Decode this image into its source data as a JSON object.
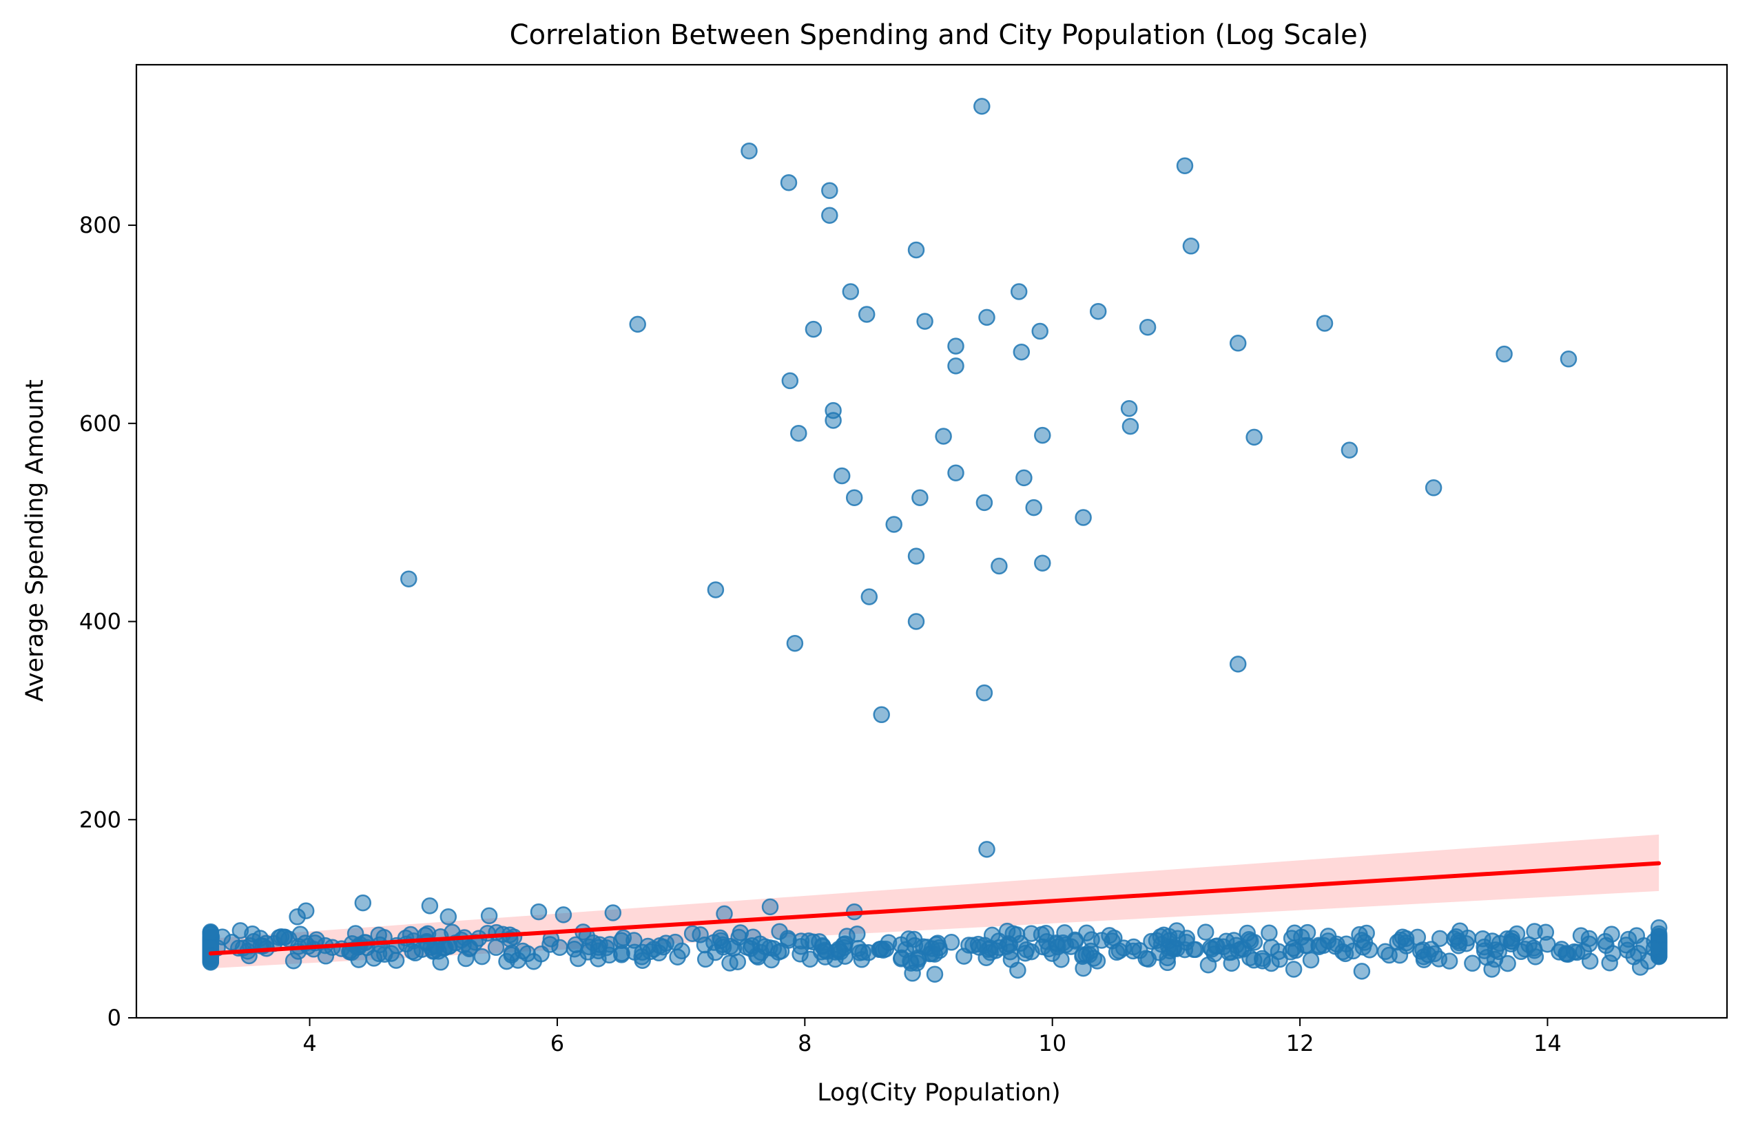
{
  "chart_data": {
    "type": "scatter",
    "title": "Correlation Between Spending and City Population (Log Scale)",
    "xlabel": "Log(City Population)",
    "ylabel": "Average Spending Amount",
    "xlim": [
      2.6,
      15.45
    ],
    "ylim": [
      0,
      962
    ],
    "xticks": [
      4,
      6,
      8,
      10,
      12,
      14
    ],
    "yticks": [
      0,
      200,
      400,
      600,
      800
    ],
    "grid": false,
    "legend": "none",
    "point_color": "#1f77b4",
    "fit_color": "#ff0000",
    "band_color": "#ffcccc",
    "regression": {
      "x": [
        3.2,
        14.9
      ],
      "y": [
        65,
        156
      ],
      "ci_lower": [
        50,
        128
      ],
      "ci_upper": [
        80,
        185
      ]
    },
    "outliers": [
      [
        4.8,
        443
      ],
      [
        6.65,
        700
      ],
      [
        7.28,
        432
      ],
      [
        7.55,
        875
      ],
      [
        7.87,
        843
      ],
      [
        7.88,
        643
      ],
      [
        7.92,
        378
      ],
      [
        7.95,
        590
      ],
      [
        8.07,
        695
      ],
      [
        8.2,
        835
      ],
      [
        8.2,
        810
      ],
      [
        8.23,
        613
      ],
      [
        8.23,
        603
      ],
      [
        8.3,
        547
      ],
      [
        8.37,
        733
      ],
      [
        8.4,
        525
      ],
      [
        8.5,
        710
      ],
      [
        8.52,
        425
      ],
      [
        8.62,
        306
      ],
      [
        8.72,
        498
      ],
      [
        8.9,
        775
      ],
      [
        8.9,
        466
      ],
      [
        8.9,
        400
      ],
      [
        8.93,
        525
      ],
      [
        8.97,
        703
      ],
      [
        9.12,
        587
      ],
      [
        9.22,
        678
      ],
      [
        9.22,
        658
      ],
      [
        9.22,
        550
      ],
      [
        9.43,
        920
      ],
      [
        9.45,
        520
      ],
      [
        9.45,
        328
      ],
      [
        9.47,
        707
      ],
      [
        9.47,
        170
      ],
      [
        9.57,
        456
      ],
      [
        9.73,
        733
      ],
      [
        9.75,
        672
      ],
      [
        9.77,
        545
      ],
      [
        9.85,
        515
      ],
      [
        9.9,
        693
      ],
      [
        9.92,
        588
      ],
      [
        9.92,
        459
      ],
      [
        10.25,
        505
      ],
      [
        10.37,
        713
      ],
      [
        10.62,
        615
      ],
      [
        10.63,
        597
      ],
      [
        10.77,
        697
      ],
      [
        11.07,
        860
      ],
      [
        11.12,
        779
      ],
      [
        11.5,
        681
      ],
      [
        11.5,
        357
      ],
      [
        11.63,
        586
      ],
      [
        12.2,
        701
      ],
      [
        12.4,
        573
      ],
      [
        13.08,
        535
      ],
      [
        13.65,
        670
      ],
      [
        14.17,
        665
      ]
    ],
    "cluster": {
      "description": "",
      "n": 560,
      "x_range": [
        3.2,
        14.9
      ],
      "y_typical": [
        45,
        112
      ],
      "notable": [
        [
          3.2,
          63
        ],
        [
          3.65,
          70
        ],
        [
          3.9,
          102
        ],
        [
          3.97,
          108
        ],
        [
          4.43,
          116
        ],
        [
          4.97,
          113
        ],
        [
          5.12,
          102
        ],
        [
          5.45,
          103
        ],
        [
          5.85,
          107
        ],
        [
          6.05,
          104
        ],
        [
          6.45,
          106
        ],
        [
          7.35,
          105
        ],
        [
          7.72,
          112
        ],
        [
          8.4,
          107
        ],
        [
          8.87,
          45
        ],
        [
          9.05,
          44
        ],
        [
          9.72,
          48
        ],
        [
          10.25,
          50
        ],
        [
          11.95,
          49
        ],
        [
          12.5,
          47
        ],
        [
          13.55,
          49
        ],
        [
          14.15,
          65
        ],
        [
          14.27,
          83
        ],
        [
          14.72,
          83
        ],
        [
          14.75,
          51
        ],
        [
          14.9,
          91
        ]
      ]
    }
  }
}
